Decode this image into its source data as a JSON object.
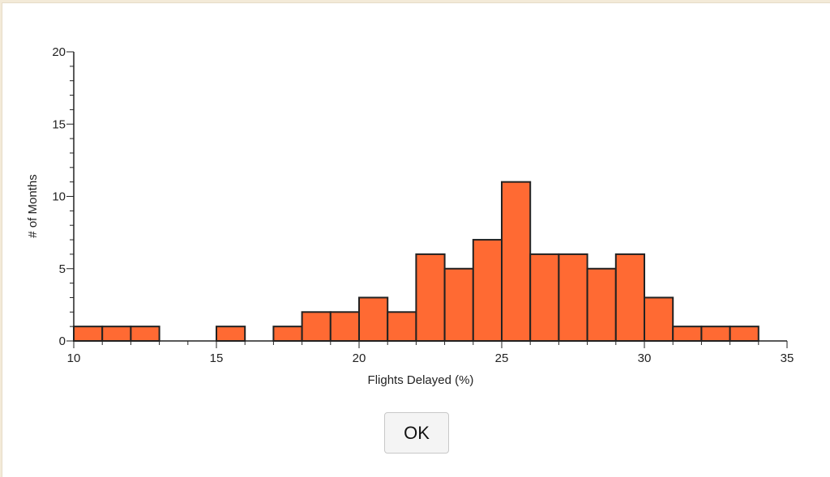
{
  "chart_data": {
    "type": "bar",
    "xlabel": "Flights Delayed (%)",
    "ylabel": "# of Months",
    "xlim": [
      10,
      35
    ],
    "ylim": [
      0,
      20
    ],
    "x_ticks": [
      10,
      15,
      20,
      25,
      30,
      35
    ],
    "y_ticks": [
      0,
      5,
      10,
      15,
      20
    ],
    "bin_width": 1,
    "bins": [
      {
        "start": 10,
        "count": 1
      },
      {
        "start": 11,
        "count": 1
      },
      {
        "start": 12,
        "count": 1
      },
      {
        "start": 15,
        "count": 1
      },
      {
        "start": 17,
        "count": 1
      },
      {
        "start": 18,
        "count": 2
      },
      {
        "start": 19,
        "count": 2
      },
      {
        "start": 20,
        "count": 3
      },
      {
        "start": 21,
        "count": 2
      },
      {
        "start": 22,
        "count": 6
      },
      {
        "start": 23,
        "count": 5
      },
      {
        "start": 24,
        "count": 7
      },
      {
        "start": 25,
        "count": 11
      },
      {
        "start": 26,
        "count": 6
      },
      {
        "start": 27,
        "count": 6
      },
      {
        "start": 28,
        "count": 5
      },
      {
        "start": 29,
        "count": 6
      },
      {
        "start": 30,
        "count": 3
      },
      {
        "start": 31,
        "count": 1
      },
      {
        "start": 32,
        "count": 1
      },
      {
        "start": 33,
        "count": 1
      }
    ],
    "bar_color": "#ff6a33",
    "bar_stroke": "#222222",
    "grid": false
  },
  "dialog": {
    "ok_label": "OK"
  }
}
